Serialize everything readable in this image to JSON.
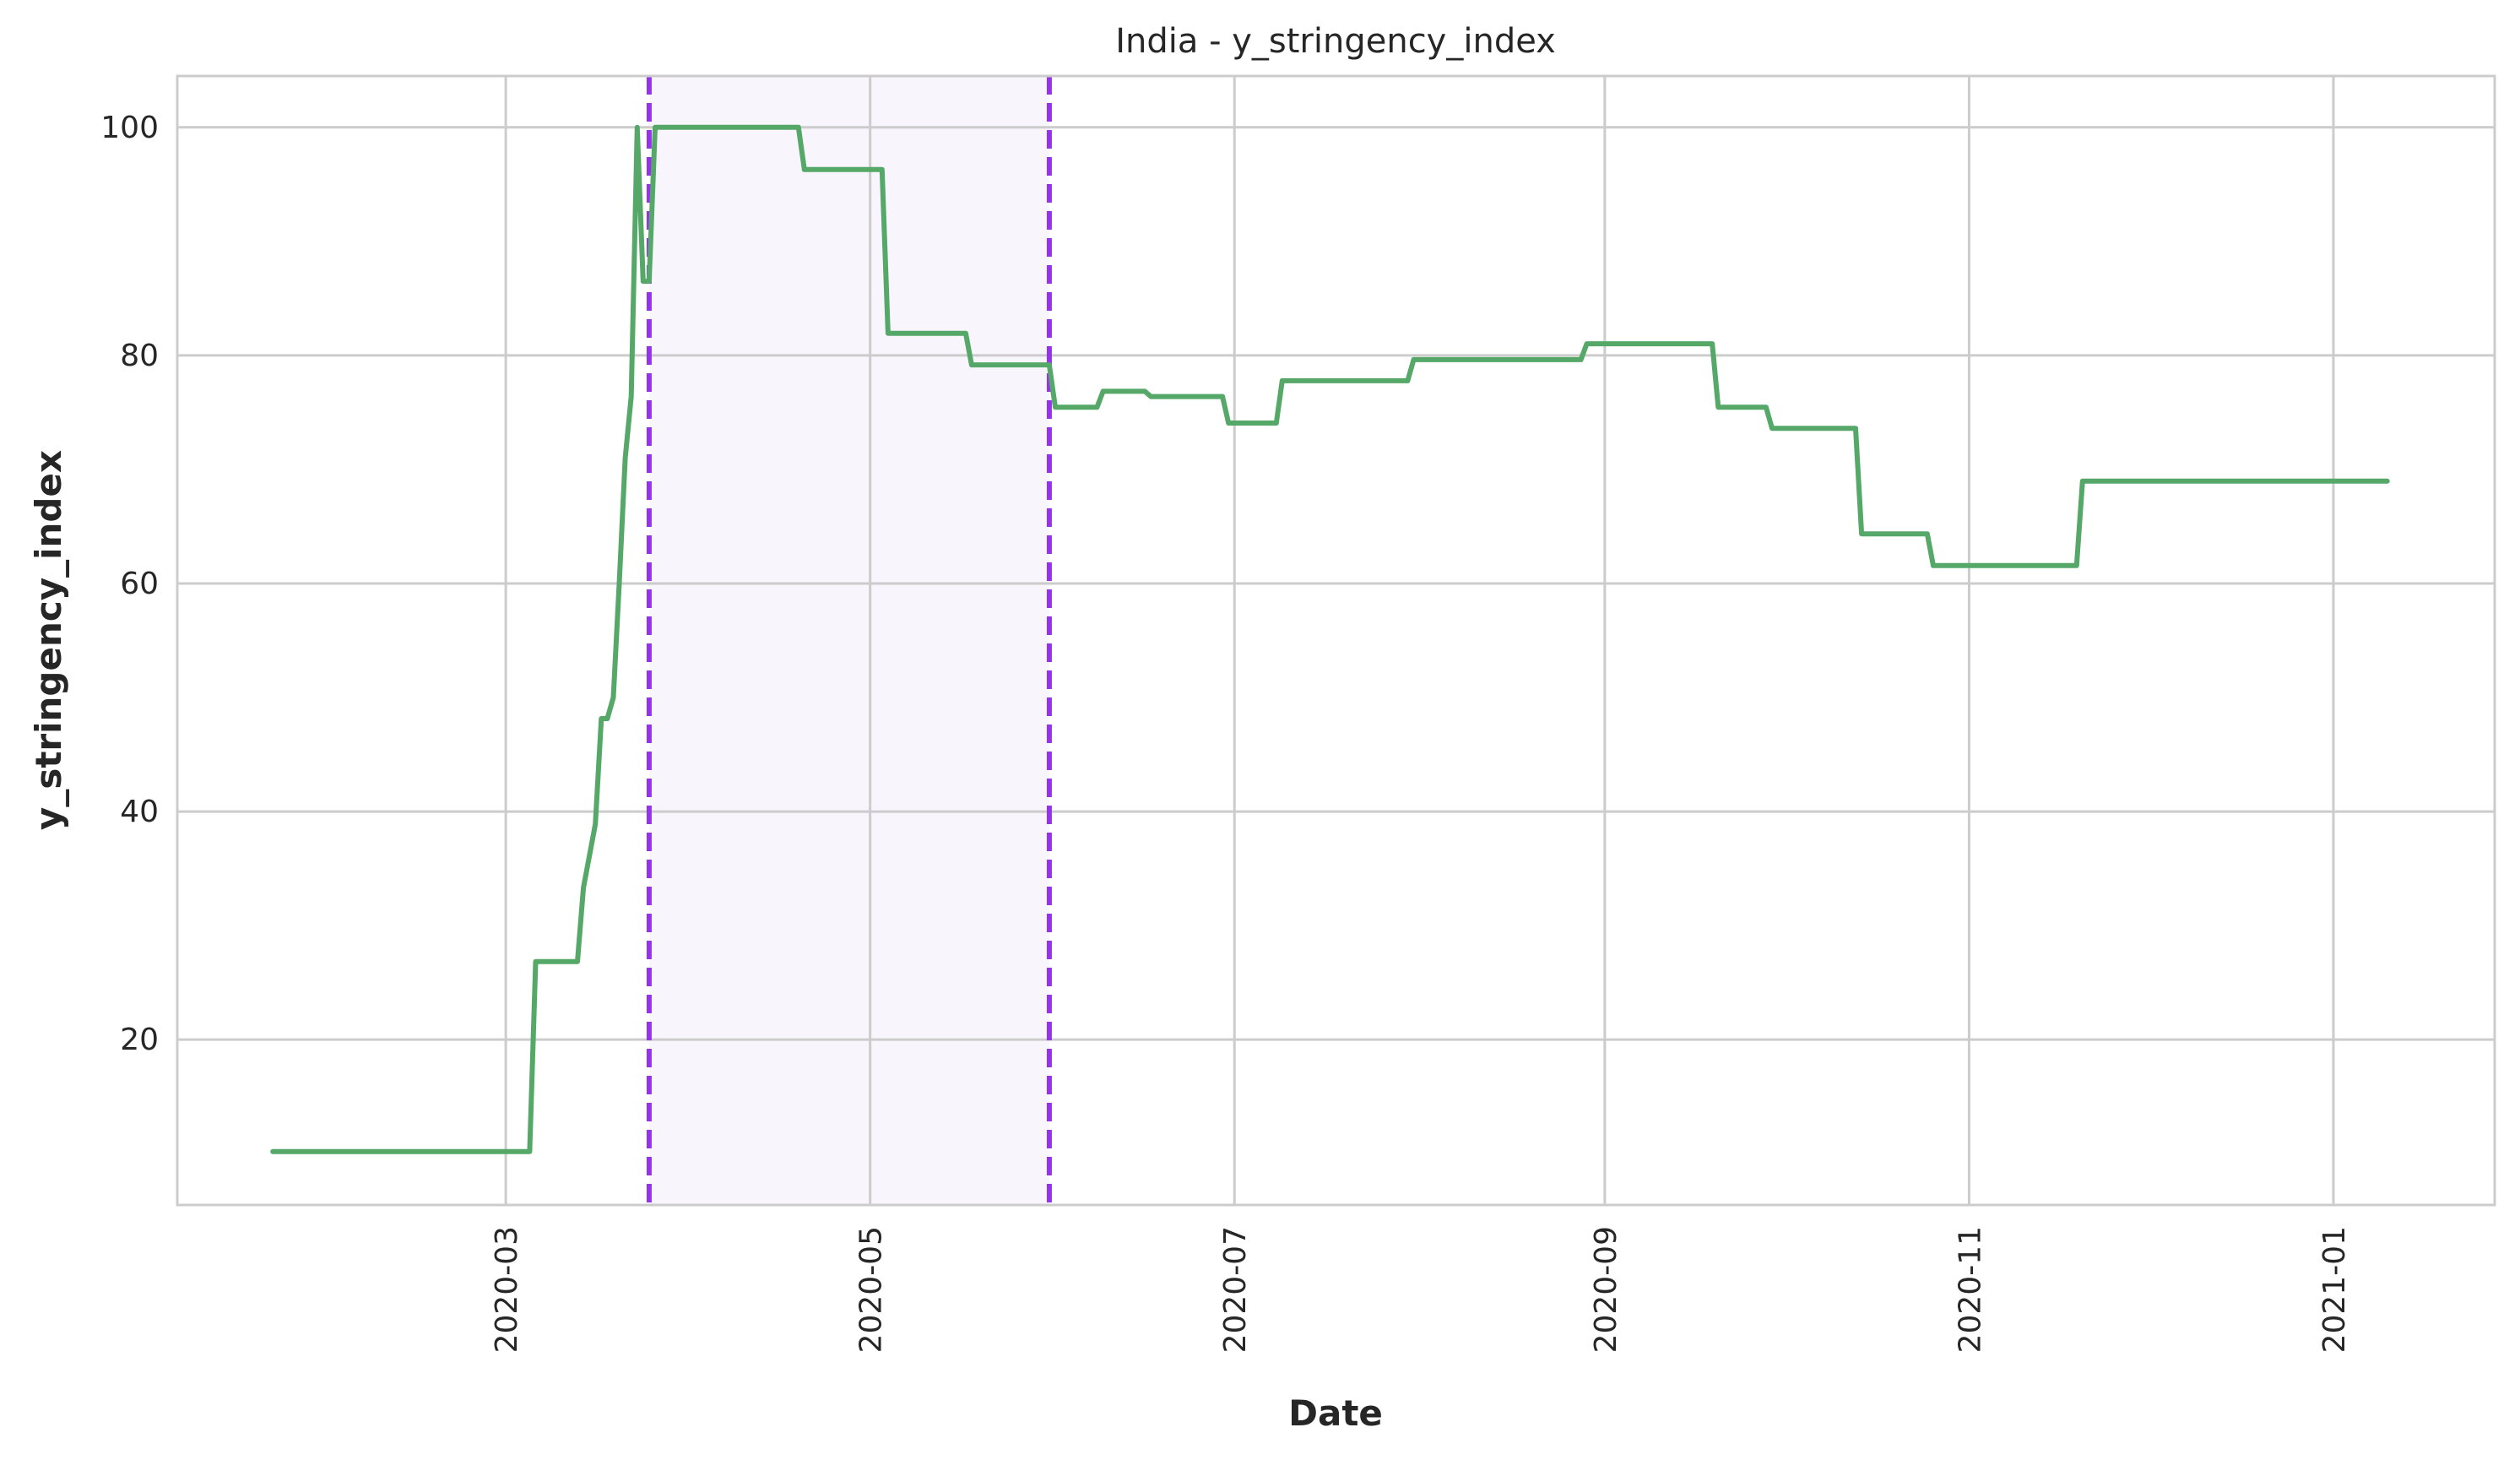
{
  "chart_data": {
    "type": "line",
    "title": "India - y_stringency_index",
    "xlabel": "Date",
    "ylabel": "y_stringency_index",
    "xlim": [
      "2020-01-06",
      "2021-01-28"
    ],
    "ylim": [
      5.5,
      104.5
    ],
    "grid": true,
    "x_ticks": [
      {
        "date": "2020-03-01",
        "label": "2020-03"
      },
      {
        "date": "2020-05-01",
        "label": "2020-05"
      },
      {
        "date": "2020-07-01",
        "label": "2020-07"
      },
      {
        "date": "2020-09-01",
        "label": "2020-09"
      },
      {
        "date": "2020-11-01",
        "label": "2020-11"
      },
      {
        "date": "2021-01-01",
        "label": "2021-01"
      }
    ],
    "y_ticks": [
      20,
      40,
      60,
      80,
      100
    ],
    "shaded_region": {
      "start": "2020-03-25",
      "end": "2020-05-31",
      "color": "#f8f5fd"
    },
    "vlines": [
      {
        "date": "2020-03-25",
        "color": "#9334e6"
      },
      {
        "date": "2020-05-31",
        "color": "#9334e6"
      }
    ],
    "series": [
      {
        "color": "#55a868",
        "points": [
          [
            "2020-01-22",
            10.19
          ],
          [
            "2020-03-05",
            10.19
          ],
          [
            "2020-03-06",
            26.85
          ],
          [
            "2020-03-13",
            26.85
          ],
          [
            "2020-03-14",
            33.33
          ],
          [
            "2020-03-16",
            38.89
          ],
          [
            "2020-03-17",
            48.15
          ],
          [
            "2020-03-18",
            48.15
          ],
          [
            "2020-03-19",
            50.0
          ],
          [
            "2020-03-20",
            60.0
          ],
          [
            "2020-03-21",
            71.0
          ],
          [
            "2020-03-22",
            76.4
          ],
          [
            "2020-03-23",
            100.0
          ],
          [
            "2020-03-24",
            86.5
          ],
          [
            "2020-03-25",
            86.5
          ],
          [
            "2020-03-26",
            100.0
          ],
          [
            "2020-04-19",
            100.0
          ],
          [
            "2020-04-20",
            96.3
          ],
          [
            "2020-05-03",
            96.3
          ],
          [
            "2020-05-04",
            81.94
          ],
          [
            "2020-05-17",
            81.94
          ],
          [
            "2020-05-18",
            79.17
          ],
          [
            "2020-05-31",
            79.17
          ],
          [
            "2020-06-01",
            75.46
          ],
          [
            "2020-06-08",
            75.46
          ],
          [
            "2020-06-09",
            76.85
          ],
          [
            "2020-06-16",
            76.85
          ],
          [
            "2020-06-17",
            76.39
          ],
          [
            "2020-06-29",
            76.39
          ],
          [
            "2020-06-30",
            74.07
          ],
          [
            "2020-07-08",
            74.07
          ],
          [
            "2020-07-09",
            77.78
          ],
          [
            "2020-07-30",
            77.78
          ],
          [
            "2020-07-31",
            79.63
          ],
          [
            "2020-08-28",
            79.63
          ],
          [
            "2020-08-29",
            81.02
          ],
          [
            "2020-09-19",
            81.02
          ],
          [
            "2020-09-20",
            75.46
          ],
          [
            "2020-09-28",
            75.46
          ],
          [
            "2020-09-29",
            73.61
          ],
          [
            "2020-10-13",
            73.61
          ],
          [
            "2020-10-14",
            64.35
          ],
          [
            "2020-10-25",
            64.35
          ],
          [
            "2020-10-26",
            61.57
          ],
          [
            "2020-11-19",
            61.57
          ],
          [
            "2020-11-20",
            68.98
          ],
          [
            "2021-01-10",
            68.98
          ]
        ]
      }
    ]
  }
}
